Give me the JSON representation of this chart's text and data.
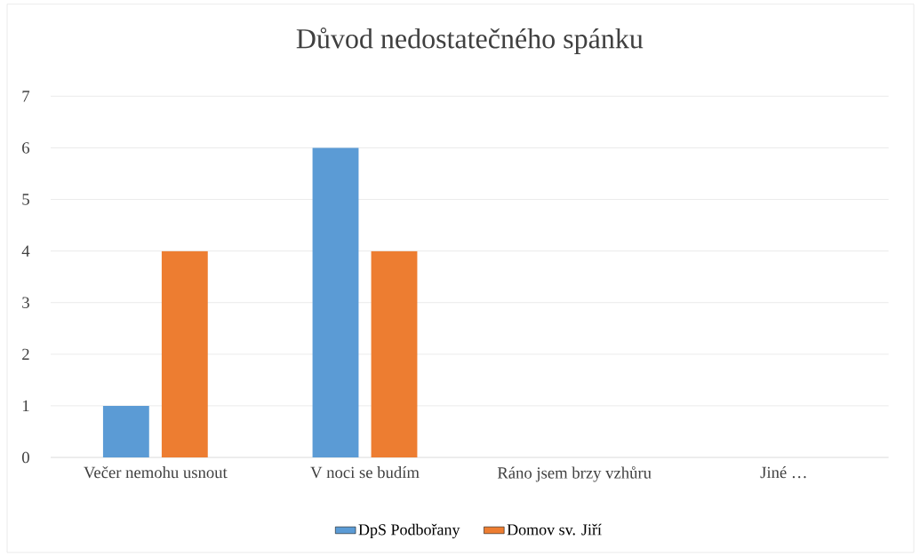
{
  "chart_data": {
    "type": "bar",
    "title": "Důvod nedostatečného spánku",
    "categories": [
      "Večer nemohu usnout",
      "V noci se budím",
      "Ráno jsem brzy vzhůru",
      "Jiné …"
    ],
    "series": [
      {
        "name": "DpS Podbořany",
        "color": "#5b9bd5",
        "values": [
          1,
          6,
          0,
          0
        ]
      },
      {
        "name": "Domov sv. Jiří",
        "color": "#ed7d31",
        "values": [
          4,
          4,
          0,
          0
        ]
      }
    ],
    "ylim": [
      0,
      7
    ],
    "yticks": [
      0,
      1,
      2,
      3,
      4,
      5,
      6,
      7
    ],
    "grid": "y",
    "legend": "bottom"
  }
}
